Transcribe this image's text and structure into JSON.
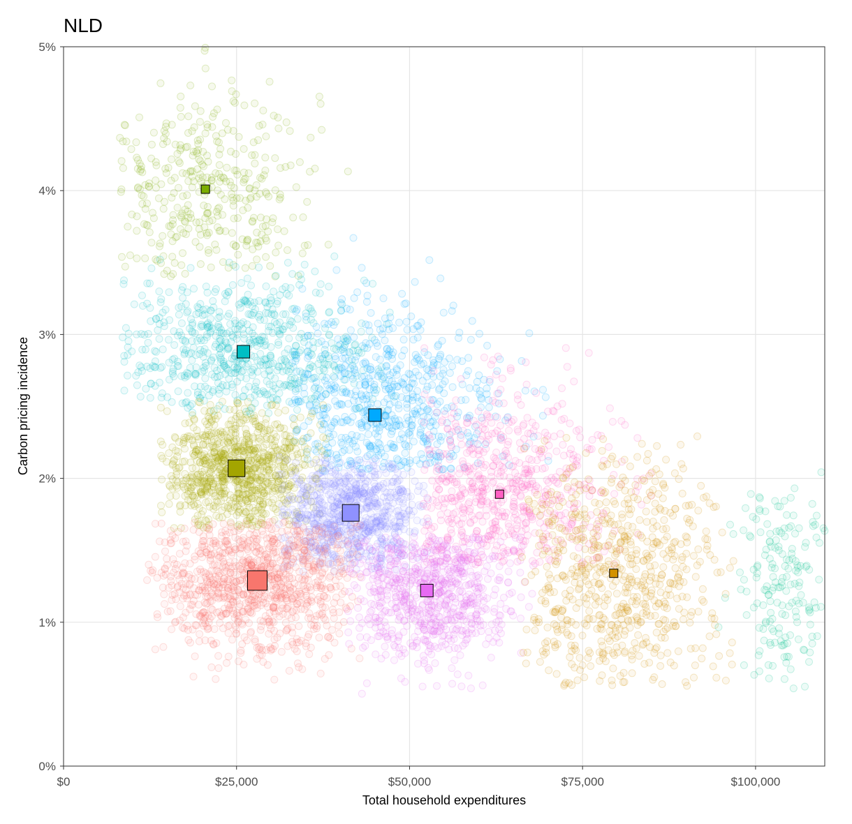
{
  "chart_data": {
    "type": "scatter",
    "title": "NLD",
    "xlabel": "Total household expenditures",
    "ylabel": "Carbon pricing incidence",
    "xlim": [
      0,
      110000
    ],
    "ylim": [
      0,
      5
    ],
    "x_ticks": [
      0,
      25000,
      50000,
      75000,
      100000
    ],
    "x_tick_labels": [
      "$0",
      "$25,000",
      "$50,000",
      "$75,000",
      "$100,000"
    ],
    "y_ticks": [
      0,
      1,
      2,
      3,
      4,
      5
    ],
    "y_tick_labels": [
      "0%",
      "1%",
      "2%",
      "3%",
      "4%",
      "5%"
    ],
    "grid": true,
    "legend": "none",
    "point_style": "semi-transparent hollow circles, points grouped into colored clusters",
    "series": [
      {
        "color": "#7CAE00",
        "centroid": {
          "x": 20500,
          "y": 4.01
        },
        "centroid_size": 1,
        "x_range": [
          8000,
          42000
        ],
        "y_range": [
          3.4,
          5.0
        ],
        "n_points": 380
      },
      {
        "color": "#00BFC4",
        "centroid": {
          "x": 26000,
          "y": 2.88
        },
        "centroid_size": 2,
        "x_range": [
          8500,
          48000
        ],
        "y_range": [
          2.45,
          3.55
        ],
        "n_points": 650
      },
      {
        "color": "#00A9FF",
        "centroid": {
          "x": 45000,
          "y": 2.44
        },
        "centroid_size": 2,
        "x_range": [
          33000,
          72000
        ],
        "y_range": [
          2.05,
          3.7
        ],
        "n_points": 650
      },
      {
        "color": "#A3A500",
        "centroid": {
          "x": 25000,
          "y": 2.07
        },
        "centroid_size": 3,
        "x_range": [
          14000,
          38000
        ],
        "y_range": [
          1.65,
          2.55
        ],
        "n_points": 900
      },
      {
        "color": "#8F91FF",
        "centroid": {
          "x": 41500,
          "y": 1.76
        },
        "centroid_size": 3,
        "x_range": [
          31000,
          53000
        ],
        "y_range": [
          1.35,
          2.15
        ],
        "n_points": 800
      },
      {
        "color": "#FF61C3",
        "centroid": {
          "x": 63000,
          "y": 1.89
        },
        "centroid_size": 1,
        "x_range": [
          52000,
          88000
        ],
        "y_range": [
          1.4,
          2.95
        ],
        "n_points": 650
      },
      {
        "color": "#F8766D",
        "centroid": {
          "x": 28000,
          "y": 1.29
        },
        "centroid_size": 4,
        "x_range": [
          12000,
          43000
        ],
        "y_range": [
          0.6,
          1.7
        ],
        "n_points": 1000
      },
      {
        "color": "#E76BF3",
        "centroid": {
          "x": 52500,
          "y": 1.22
        },
        "centroid_size": 2,
        "x_range": [
          41000,
          68000
        ],
        "y_range": [
          0.5,
          1.6
        ],
        "n_points": 750
      },
      {
        "color": "#D39200",
        "centroid": {
          "x": 79500,
          "y": 1.34
        },
        "centroid_size": 1,
        "x_range": [
          66000,
          98000
        ],
        "y_range": [
          0.55,
          2.3
        ],
        "n_points": 700
      },
      {
        "color": "#00C08B",
        "centroid": {
          "x": 104000,
          "y": 1.25
        },
        "centroid_size": 0,
        "x_range": [
          94000,
          110000
        ],
        "y_range": [
          0.5,
          2.2
        ],
        "n_points": 180
      }
    ]
  }
}
